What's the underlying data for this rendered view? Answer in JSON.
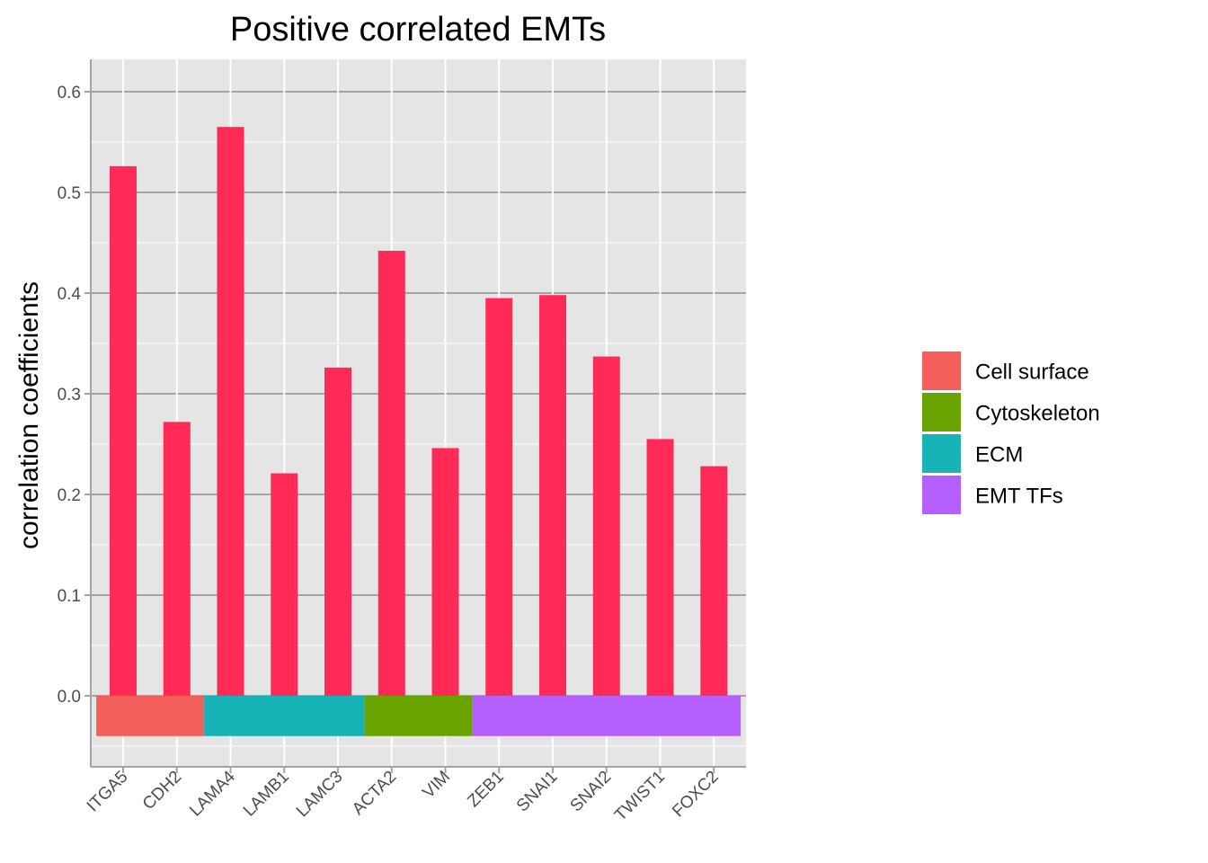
{
  "chart_data": {
    "type": "bar",
    "title": "Positive correlated EMTs",
    "xlabel": "",
    "ylabel": "correlation coefficients",
    "categories": [
      "ITGA5",
      "CDH2",
      "LAMA4",
      "LAMB1",
      "LAMC3",
      "ACTA2",
      "VIM",
      "ZEB1",
      "SNAI1",
      "SNAI2",
      "TWIST1",
      "FOXC2"
    ],
    "values": [
      0.526,
      0.272,
      0.565,
      0.221,
      0.326,
      0.442,
      0.246,
      0.395,
      0.398,
      0.337,
      0.255,
      0.228
    ],
    "bar_color": "#FF2A55",
    "ylim": [
      -0.065,
      0.63
    ],
    "yticks": [
      0.0,
      0.1,
      0.2,
      0.3,
      0.4,
      0.5,
      0.6
    ],
    "ytick_labels": [
      "0.0",
      "0.1",
      "0.2",
      "0.3",
      "0.4",
      "0.5",
      "0.6"
    ],
    "grid": true,
    "panel_background": "#E5E5E5",
    "category_strip": {
      "ymin": -0.04,
      "ymax": 0.0,
      "groups": [
        {
          "name": "Cell surface",
          "color": "#F35E5A",
          "categories": [
            "ITGA5",
            "CDH2"
          ]
        },
        {
          "name": "ECM",
          "color": "#17B3B7",
          "categories": [
            "LAMA4",
            "LAMB1",
            "LAMC3"
          ]
        },
        {
          "name": "Cytoskeleton",
          "color": "#6AA402",
          "categories": [
            "ACTA2",
            "VIM"
          ]
        },
        {
          "name": "EMT TFs",
          "color": "#B65FFF",
          "categories": [
            "ZEB1",
            "SNAI1",
            "SNAI2",
            "TWIST1",
            "FOXC2"
          ]
        }
      ]
    },
    "legend": {
      "placement": "right",
      "entries": [
        {
          "label": "Cell surface",
          "color": "#F35E5A"
        },
        {
          "label": "Cytoskeleton",
          "color": "#6AA402"
        },
        {
          "label": "ECM",
          "color": "#17B3B7"
        },
        {
          "label": "EMT TFs",
          "color": "#B65FFF"
        }
      ]
    }
  }
}
